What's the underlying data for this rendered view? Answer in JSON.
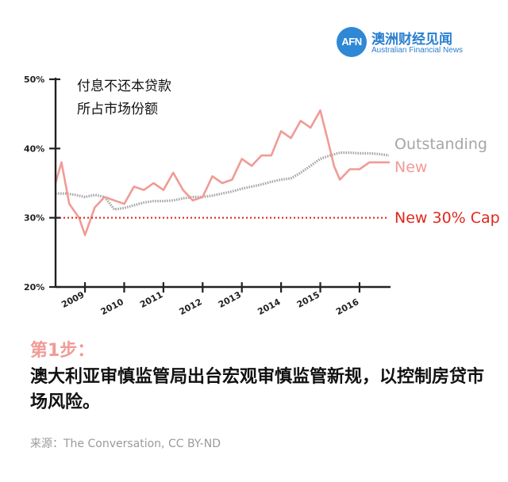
{
  "logo": {
    "mark": "AFN",
    "name_cn": "澳洲财经见闻",
    "name_en": "Australian Financial News"
  },
  "step_label": "第1步：",
  "headline": "澳大利亚审慎监管局出台宏观审慎监管新规，以控制房贷市场风险。",
  "source": "来源：The Conversation, CC BY-ND",
  "colors": {
    "new": "#f09b96",
    "outstanding": "#a6a6a6",
    "cap": "#e0281e",
    "axis": "#222222",
    "brand": "#2a7fcf"
  },
  "chart_data": {
    "type": "line",
    "title_lines": [
      "付息不还本贷款",
      "所占市场份额"
    ],
    "yticks": [
      "20%",
      "30%",
      "40%",
      "50%"
    ],
    "ytick_values": [
      20,
      30,
      40,
      50
    ],
    "ylim": [
      20,
      50
    ],
    "xticks": [
      "2009",
      "2010",
      "2011",
      "2012",
      "2013",
      "2014",
      "2015",
      "2016"
    ],
    "xtick_values": [
      2009,
      2010,
      2011,
      2012,
      2013,
      2014,
      2015,
      2016
    ],
    "xlim": [
      2008.25,
      2016.75
    ],
    "series": [
      {
        "name": "Outstanding",
        "color": "#a6a6a6",
        "style": "dotted",
        "x": [
          2008.25,
          2008.5,
          2008.75,
          2009.0,
          2009.25,
          2009.5,
          2009.75,
          2010.0,
          2010.25,
          2010.5,
          2010.75,
          2011.0,
          2011.25,
          2011.5,
          2011.75,
          2012.0,
          2012.25,
          2012.5,
          2012.75,
          2013.0,
          2013.25,
          2013.5,
          2013.75,
          2014.0,
          2014.25,
          2014.5,
          2014.75,
          2015.0,
          2015.25,
          2015.5,
          2015.75,
          2016.0,
          2016.25,
          2016.5,
          2016.75
        ],
        "values": [
          33.5,
          33.5,
          33.3,
          33.0,
          33.3,
          33.0,
          31.2,
          31.4,
          31.8,
          32.2,
          32.4,
          32.4,
          32.5,
          32.8,
          33.0,
          33.0,
          33.2,
          33.5,
          33.8,
          34.2,
          34.5,
          34.8,
          35.2,
          35.5,
          35.7,
          36.5,
          37.5,
          38.5,
          39.0,
          39.4,
          39.4,
          39.3,
          39.3,
          39.2,
          39.0
        ]
      },
      {
        "name": "New",
        "color": "#f09b96",
        "style": "solid",
        "x": [
          2008.25,
          2008.4,
          2008.6,
          2008.85,
          2009.0,
          2009.25,
          2009.5,
          2009.75,
          2010.0,
          2010.25,
          2010.5,
          2010.75,
          2011.0,
          2011.25,
          2011.5,
          2011.75,
          2012.0,
          2012.25,
          2012.5,
          2012.75,
          2013.0,
          2013.25,
          2013.5,
          2013.75,
          2014.0,
          2014.25,
          2014.5,
          2014.75,
          2015.0,
          2015.2,
          2015.35,
          2015.5,
          2015.75,
          2016.0,
          2016.25,
          2016.5,
          2016.75
        ],
        "values": [
          35.0,
          38.0,
          32.0,
          30.0,
          27.5,
          31.5,
          33.0,
          32.5,
          32.0,
          34.5,
          34.0,
          35.0,
          34.0,
          36.5,
          34.0,
          32.5,
          33.0,
          36.0,
          35.0,
          35.5,
          38.5,
          37.5,
          39.0,
          39.0,
          42.5,
          41.5,
          44.0,
          43.0,
          45.5,
          41.0,
          37.5,
          35.5,
          37.0,
          37.0,
          38.0,
          38.0,
          38.0
        ]
      },
      {
        "name": "New 30% Cap",
        "color": "#e0281e",
        "style": "dotted",
        "x": [
          2008.25,
          2016.75
        ],
        "values": [
          30,
          30
        ]
      }
    ],
    "legend_position": "right, beside line ends",
    "grid": false
  }
}
